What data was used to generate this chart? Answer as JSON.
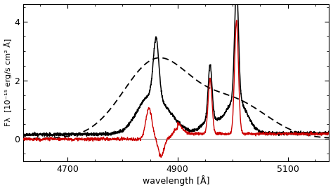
{
  "xlim": [
    4620,
    5175
  ],
  "ylim": [
    -0.75,
    4.6
  ],
  "xticks": [
    4700,
    4900,
    5100
  ],
  "yticks": [
    0,
    2,
    4
  ],
  "xlabel": "wavelength [Å]",
  "ylabel": "Fλ  [10⁻¹⁵ erg/s cm² Å]",
  "black_solid_color": "#000000",
  "black_dashed_color": "#000000",
  "red_color": "#cc0000",
  "hbeta": 4861,
  "oiii_4959": 4959,
  "oiii_5007": 5007
}
